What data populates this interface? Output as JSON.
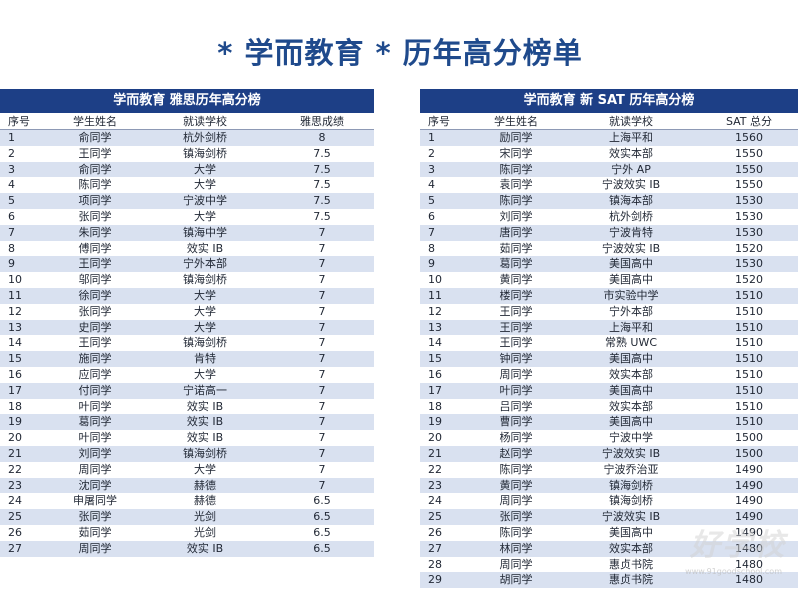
{
  "page_title": "* 学而教育 * 历年高分榜单",
  "ielts": {
    "title": "学而教育  雅思历年高分榜",
    "headers": [
      "序号",
      "学生姓名",
      "就读学校",
      "雅思成绩"
    ],
    "rows": [
      [
        "1",
        "俞同学",
        "杭外剑桥",
        "8"
      ],
      [
        "2",
        "王同学",
        "镇海剑桥",
        "7.5"
      ],
      [
        "3",
        "俞同学",
        "大学",
        "7.5"
      ],
      [
        "4",
        "陈同学",
        "大学",
        "7.5"
      ],
      [
        "5",
        "项同学",
        "宁波中学",
        "7.5"
      ],
      [
        "6",
        "张同学",
        "大学",
        "7.5"
      ],
      [
        "7",
        "朱同学",
        "镇海中学",
        "7"
      ],
      [
        "8",
        "傅同学",
        "效实 IB",
        "7"
      ],
      [
        "9",
        "王同学",
        "宁外本部",
        "7"
      ],
      [
        "10",
        "邬同学",
        "镇海剑桥",
        "7"
      ],
      [
        "11",
        "徐同学",
        "大学",
        "7"
      ],
      [
        "12",
        "张同学",
        "大学",
        "7"
      ],
      [
        "13",
        "史同学",
        "大学",
        "7"
      ],
      [
        "14",
        "王同学",
        "镇海剑桥",
        "7"
      ],
      [
        "15",
        "施同学",
        "肯特",
        "7"
      ],
      [
        "16",
        "应同学",
        "大学",
        "7"
      ],
      [
        "17",
        "付同学",
        "宁诺高一",
        "7"
      ],
      [
        "18",
        "叶同学",
        "效实 IB",
        "7"
      ],
      [
        "19",
        "葛同学",
        "效实 IB",
        "7"
      ],
      [
        "20",
        "叶同学",
        "效实 IB",
        "7"
      ],
      [
        "21",
        "刘同学",
        "镇海剑桥",
        "7"
      ],
      [
        "22",
        "周同学",
        "大学",
        "7"
      ],
      [
        "23",
        "沈同学",
        "赫德",
        "7"
      ],
      [
        "24",
        "申屠同学",
        "赫德",
        "6.5"
      ],
      [
        "25",
        "张同学",
        "光剑",
        "6.5"
      ],
      [
        "26",
        "茹同学",
        "光剑",
        "6.5"
      ],
      [
        "27",
        "周同学",
        "效实 IB",
        "6.5"
      ]
    ]
  },
  "sat": {
    "title": "学而教育  新 SAT 历年高分榜",
    "headers": [
      "序号",
      "学生姓名",
      "就读学校",
      "SAT 总分"
    ],
    "rows": [
      [
        "1",
        "励同学",
        "上海平和",
        "1560"
      ],
      [
        "2",
        "宋同学",
        "效实本部",
        "1550"
      ],
      [
        "3",
        "陈同学",
        "宁外 AP",
        "1550"
      ],
      [
        "4",
        "袁同学",
        "宁波效实 IB",
        "1550"
      ],
      [
        "5",
        "陈同学",
        "镇海本部",
        "1530"
      ],
      [
        "6",
        "刘同学",
        "杭外剑桥",
        "1530"
      ],
      [
        "7",
        "唐同学",
        "宁波肯特",
        "1530"
      ],
      [
        "8",
        "茹同学",
        "宁波效实 IB",
        "1520"
      ],
      [
        "9",
        "葛同学",
        "美国高中",
        "1530"
      ],
      [
        "10",
        "黄同学",
        "美国高中",
        "1520"
      ],
      [
        "11",
        "楼同学",
        "市实验中学",
        "1510"
      ],
      [
        "12",
        "王同学",
        "宁外本部",
        "1510"
      ],
      [
        "13",
        "王同学",
        "上海平和",
        "1510"
      ],
      [
        "14",
        "王同学",
        "常熟 UWC",
        "1510"
      ],
      [
        "15",
        "钟同学",
        "美国高中",
        "1510"
      ],
      [
        "16",
        "周同学",
        "效实本部",
        "1510"
      ],
      [
        "17",
        "叶同学",
        "美国高中",
        "1510"
      ],
      [
        "18",
        "吕同学",
        "效实本部",
        "1510"
      ],
      [
        "19",
        "曹同学",
        "美国高中",
        "1510"
      ],
      [
        "20",
        "杨同学",
        "宁波中学",
        "1500"
      ],
      [
        "21",
        "赵同学",
        "宁波效实 IB",
        "1500"
      ],
      [
        "22",
        "陈同学",
        "宁波乔治亚",
        "1490"
      ],
      [
        "23",
        "黄同学",
        "镇海剑桥",
        "1490"
      ],
      [
        "24",
        "周同学",
        "镇海剑桥",
        "1490"
      ],
      [
        "25",
        "张同学",
        "宁波效实 IB",
        "1490"
      ],
      [
        "26",
        "陈同学",
        "美国高中",
        "1490"
      ],
      [
        "27",
        "林同学",
        "效实本部",
        "1480"
      ],
      [
        "28",
        "周同学",
        "惠贞书院",
        "1480"
      ],
      [
        "29",
        "胡同学",
        "惠贞书院",
        "1480"
      ]
    ]
  },
  "watermark": "好学校",
  "watermark_url": "www.91goodschool.com"
}
